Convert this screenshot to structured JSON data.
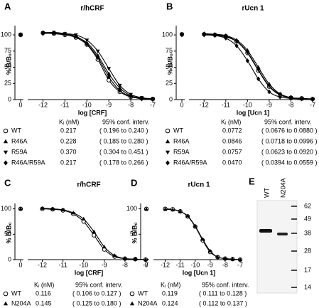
{
  "chart_data": [
    {
      "type": "line",
      "panel": "A",
      "title": "r/hCRF",
      "xlabel": "log [CRF]",
      "ylabel": "% B/B₀",
      "zero_label": "0",
      "x": [
        -12,
        -11.5,
        -11,
        -10.5,
        -10,
        -9.5,
        -9,
        -8.5,
        -8,
        -7.5,
        -7
      ],
      "xlim": [
        -12.5,
        -7
      ],
      "xticks": [
        -12,
        -11,
        -10,
        -9,
        -8,
        -7
      ],
      "ylim": [
        0,
        110
      ],
      "yticks": [
        0,
        25,
        50,
        75,
        100
      ],
      "table_header": [
        "Kᵢ (nM)",
        "95% conf. interv."
      ],
      "series": [
        {
          "name": "WT",
          "marker": "circle-open",
          "color": "#000000",
          "control": 100,
          "values": [
            103,
            102,
            100,
            96,
            85,
            62,
            30,
            12,
            4,
            2,
            1
          ],
          "ki": "0.217",
          "ci": "( 0.196 to 0.240 )"
        },
        {
          "name": "R46A",
          "marker": "triangle-up",
          "color": "#000000",
          "control": 101,
          "values": [
            104,
            103,
            102,
            97,
            88,
            68,
            40,
            18,
            6,
            2,
            1
          ],
          "ki": "0.228",
          "ci": "( 0.185 to 0.280 )"
        },
        {
          "name": "R59A",
          "marker": "triangle-down",
          "color": "#000000",
          "control": 101,
          "values": [
            103,
            104,
            102,
            100,
            92,
            75,
            48,
            22,
            8,
            3,
            1
          ],
          "ki": "0.370",
          "ci": "( 0.304 to 0.451 )"
        },
        {
          "name": "R46A/R59A",
          "marker": "diamond",
          "color": "#000000",
          "control": 100,
          "values": [
            102,
            103,
            101,
            98,
            86,
            65,
            35,
            14,
            5,
            1,
            0
          ],
          "ki": "0.217",
          "ci": "( 0.178 to 0.266 )"
        }
      ]
    },
    {
      "type": "line",
      "panel": "B",
      "title": "rUcn 1",
      "xlabel": "log [Ucn 1]",
      "ylabel": "% B/B₀",
      "zero_label": "0",
      "x": [
        -12,
        -11.5,
        -11,
        -10.5,
        -10,
        -9.5,
        -9,
        -8.5,
        -8,
        -7.5,
        -7
      ],
      "xlim": [
        -12.5,
        -7
      ],
      "xticks": [
        -12,
        -11,
        -10,
        -9,
        -8,
        -7
      ],
      "ylim": [
        0,
        110
      ],
      "yticks": [
        0,
        25,
        50,
        75,
        100
      ],
      "table_header": [
        "Kᵢ (nM)",
        "95% conf. interv."
      ],
      "series": [
        {
          "name": "WT",
          "marker": "circle-open",
          "color": "#000000",
          "control": 101,
          "values": [
            101,
            100,
            98,
            90,
            72,
            45,
            20,
            7,
            3,
            2,
            1
          ],
          "ki": "0.0772",
          "ci": "( 0.0676 to 0.0880 )"
        },
        {
          "name": "R46A",
          "marker": "triangle-up",
          "color": "#000000",
          "control": 101,
          "values": [
            102,
            101,
            99,
            92,
            76,
            50,
            24,
            9,
            3,
            1,
            1
          ],
          "ki": "0.0846",
          "ci": "( 0.0718 to 0.0996 )"
        },
        {
          "name": "R59A",
          "marker": "triangle-down",
          "color": "#000000",
          "control": 100,
          "values": [
            101,
            100,
            97,
            90,
            73,
            46,
            21,
            8,
            3,
            1,
            0
          ],
          "ki": "0.0757",
          "ci": "( 0.0623 to 0.0920 )"
        },
        {
          "name": "R46A/R59A",
          "marker": "diamond",
          "color": "#000000",
          "control": 100,
          "values": [
            100,
            99,
            95,
            83,
            60,
            32,
            12,
            4,
            2,
            1,
            0
          ],
          "ki": "0.0470",
          "ci": "( 0.0394 to 0.0559 )"
        }
      ]
    },
    {
      "type": "line",
      "panel": "C",
      "title": "r/hCRF",
      "xlabel": "log [CRF]",
      "ylabel": "% B/B₀",
      "zero_label": "0",
      "x": [
        -12,
        -11.5,
        -11,
        -10.5,
        -10,
        -9.5,
        -9,
        -8.5,
        -8,
        -7.5,
        -7
      ],
      "xlim": [
        -12.5,
        -7
      ],
      "xticks": [
        -12,
        -11,
        -10,
        -9,
        -8,
        -7
      ],
      "ylim": [
        0,
        105
      ],
      "yticks": [
        0,
        50,
        100
      ],
      "table_header": [
        "Kᵢ (nM)",
        "95% conf. interv."
      ],
      "series": [
        {
          "name": "WT",
          "marker": "circle-open",
          "color": "#000000",
          "control": 100,
          "values": [
            100,
            99,
            97,
            90,
            75,
            48,
            20,
            6,
            2,
            1,
            0
          ],
          "ki": "0.116",
          "ci": "( 0.106 to 0.127 )"
        },
        {
          "name": "N204A",
          "marker": "triangle-up",
          "color": "#000000",
          "control": 100,
          "values": [
            101,
            100,
            98,
            92,
            80,
            55,
            25,
            8,
            2,
            1,
            0
          ],
          "ki": "0.145",
          "ci": "( 0.125 to 0.180 )"
        }
      ]
    },
    {
      "type": "line",
      "panel": "D",
      "title": "rUcn 1",
      "xlabel": "log [Ucn 1]",
      "ylabel": "% B/B₀",
      "zero_label": "0",
      "x": [
        -12,
        -11.5,
        -11,
        -10.5,
        -10,
        -9.5,
        -9,
        -8.5,
        -8,
        -7.5,
        -7
      ],
      "xlim": [
        -12.5,
        -7
      ],
      "xticks": [
        -12,
        -11,
        -10,
        -9,
        -8,
        -7
      ],
      "ylim": [
        0,
        105
      ],
      "yticks": [
        0,
        50,
        100
      ],
      "table_header": [
        "Kᵢ (nM)",
        "95% conf. interv."
      ],
      "series": [
        {
          "name": "WT",
          "marker": "circle-open",
          "color": "#000000",
          "control": 100,
          "values": [
            100,
            99,
            95,
            85,
            65,
            38,
            15,
            5,
            2,
            1,
            0
          ],
          "ki": "0.119",
          "ci": "( 0.111 to 0.128 )"
        },
        {
          "name": "N204A",
          "marker": "triangle-up",
          "color": "#000000",
          "control": 99,
          "values": [
            99,
            98,
            95,
            86,
            66,
            40,
            17,
            5,
            2,
            1,
            0
          ],
          "ki": "0.124",
          "ci": "( 0.112 to 0.137 )"
        }
      ]
    }
  ],
  "blot": {
    "panel": "E",
    "lanes": [
      "WT",
      "N204A"
    ],
    "markers": [
      62,
      49,
      38,
      28,
      17,
      14
    ]
  }
}
